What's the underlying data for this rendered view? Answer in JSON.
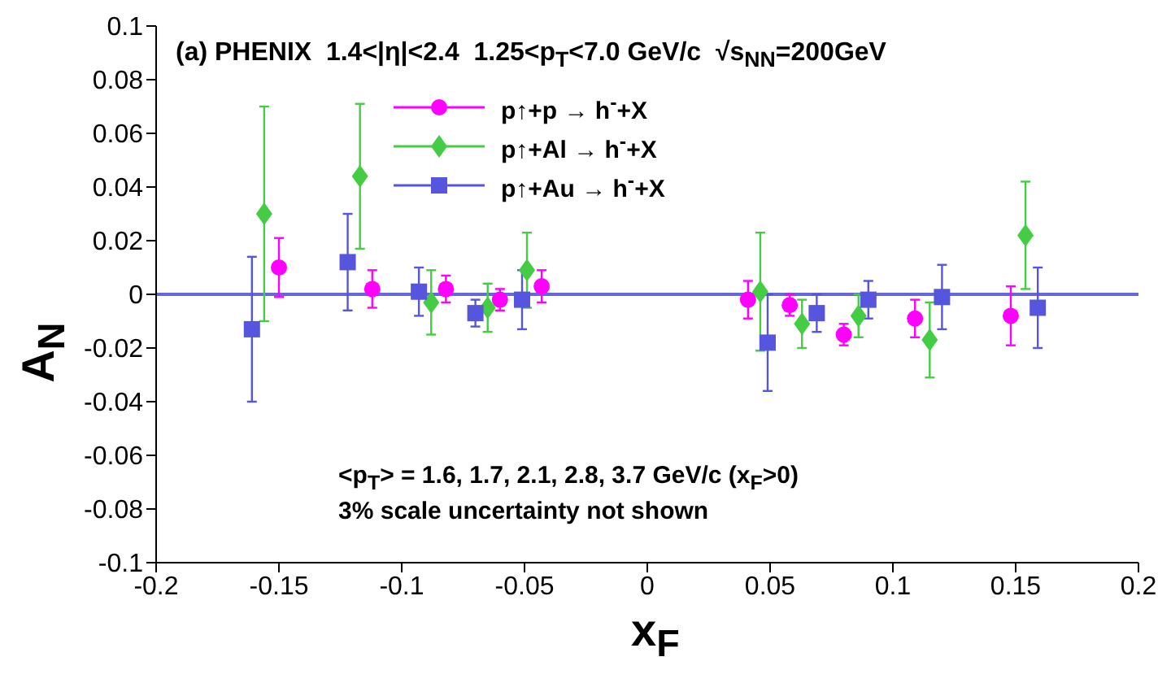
{
  "chart_data": {
    "type": "scatter",
    "title": "(a) PHENIX  1.4<|η|<2.4  1.25<p$_{T}$<7.0 GeV/c  √s$_{NN}$=200GeV",
    "xlabel": "x$_{F}$",
    "ylabel": "A$_{N}$",
    "xlim": [
      -0.2,
      0.2
    ],
    "xticks": [
      -0.2,
      -0.15,
      -0.1,
      -0.05,
      0,
      0.05,
      0.1,
      0.15,
      0.2
    ],
    "ylim": [
      -0.1,
      0.1
    ],
    "yticks": [
      -0.1,
      -0.08,
      -0.06,
      -0.04,
      -0.02,
      0,
      0.02,
      0.04,
      0.06,
      0.08,
      0.1
    ],
    "grid": false,
    "legend": "top",
    "ref_lines": [
      {
        "axis": "y",
        "value": 0,
        "color": "#6666dd"
      }
    ],
    "annotations": [
      "<p$_{T}$> = 1.6, 1.7, 2.1, 2.8, 3.7 GeV/c (x$_{F}$>0)",
      "3% scale uncertainty not shown"
    ],
    "series": [
      {
        "name": "p↑+p → h$^{-}$+X",
        "color": "#ff00ff",
        "marker": "circle",
        "x": [
          -0.15,
          -0.112,
          -0.082,
          -0.06,
          -0.043,
          0.041,
          0.058,
          0.08,
          0.109,
          0.148
        ],
        "values": [
          0.01,
          0.002,
          0.002,
          -0.002,
          0.003,
          -0.002,
          -0.004,
          -0.015,
          -0.009,
          -0.008
        ],
        "errors": [
          0.011,
          0.007,
          0.005,
          0.004,
          0.006,
          0.007,
          0.004,
          0.004,
          0.007,
          0.011
        ]
      },
      {
        "name": "p↑+Al → h$^{-}$+X",
        "color": "#44cc44",
        "marker": "diamond",
        "x": [
          -0.156,
          -0.117,
          -0.088,
          -0.065,
          -0.049,
          0.046,
          0.063,
          0.086,
          0.115,
          0.154
        ],
        "values": [
          0.03,
          0.044,
          -0.003,
          -0.005,
          0.009,
          0.001,
          -0.011,
          -0.008,
          -0.017,
          0.022
        ],
        "errors": [
          0.04,
          0.027,
          0.012,
          0.009,
          0.014,
          0.022,
          0.009,
          0.008,
          0.014,
          0.02
        ]
      },
      {
        "name": "p↑+Au → h$^{-}$+X",
        "color": "#5555dd",
        "marker": "square",
        "x": [
          -0.161,
          -0.122,
          -0.093,
          -0.07,
          -0.051,
          0.049,
          0.069,
          0.09,
          0.12,
          0.159
        ],
        "values": [
          -0.013,
          0.012,
          0.001,
          -0.007,
          -0.002,
          -0.018,
          -0.007,
          -0.002,
          -0.001,
          -0.005
        ],
        "errors": [
          0.027,
          0.018,
          0.009,
          0.005,
          0.011,
          0.018,
          0.007,
          0.007,
          0.012,
          0.015
        ]
      }
    ]
  }
}
